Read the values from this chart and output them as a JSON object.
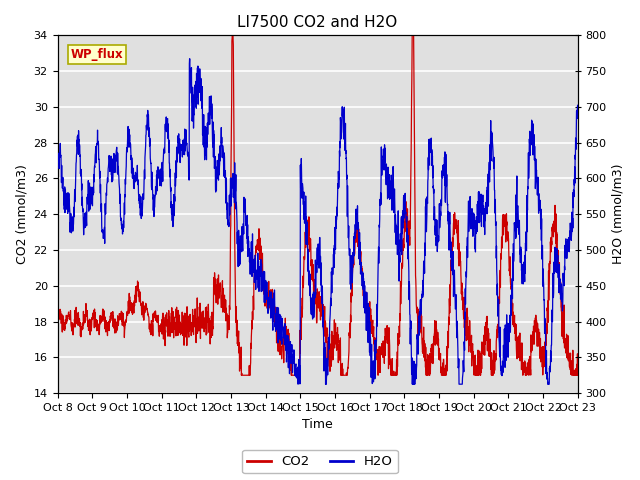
{
  "title": "LI7500 CO2 and H2O",
  "xlabel": "Time",
  "ylabel_left": "CO2 (mmol/m3)",
  "ylabel_right": "H2O (mmol/m3)",
  "ylim_left": [
    14,
    34
  ],
  "ylim_right": [
    300,
    800
  ],
  "yticks_left": [
    14,
    16,
    18,
    20,
    22,
    24,
    26,
    28,
    30,
    32,
    34
  ],
  "yticks_right": [
    300,
    350,
    400,
    450,
    500,
    550,
    600,
    650,
    700,
    750,
    800
  ],
  "xtick_labels": [
    "Oct 8",
    "Oct 9",
    "Oct 10",
    "Oct 11",
    "Oct 12",
    "Oct 13",
    "Oct 14",
    "Oct 15",
    "Oct 16",
    "Oct 17",
    "Oct 18",
    "Oct 19",
    "Oct 20",
    "Oct 21",
    "Oct 22",
    "Oct 23"
  ],
  "watermark_text": "WP_flux",
  "co2_color": "#cc0000",
  "h2o_color": "#0000cc",
  "plot_bg_color": "#e0e0e0",
  "fig_bg_color": "#ffffff",
  "grid_color": "#ffffff",
  "title_fontsize": 11,
  "label_fontsize": 9,
  "tick_fontsize": 8
}
